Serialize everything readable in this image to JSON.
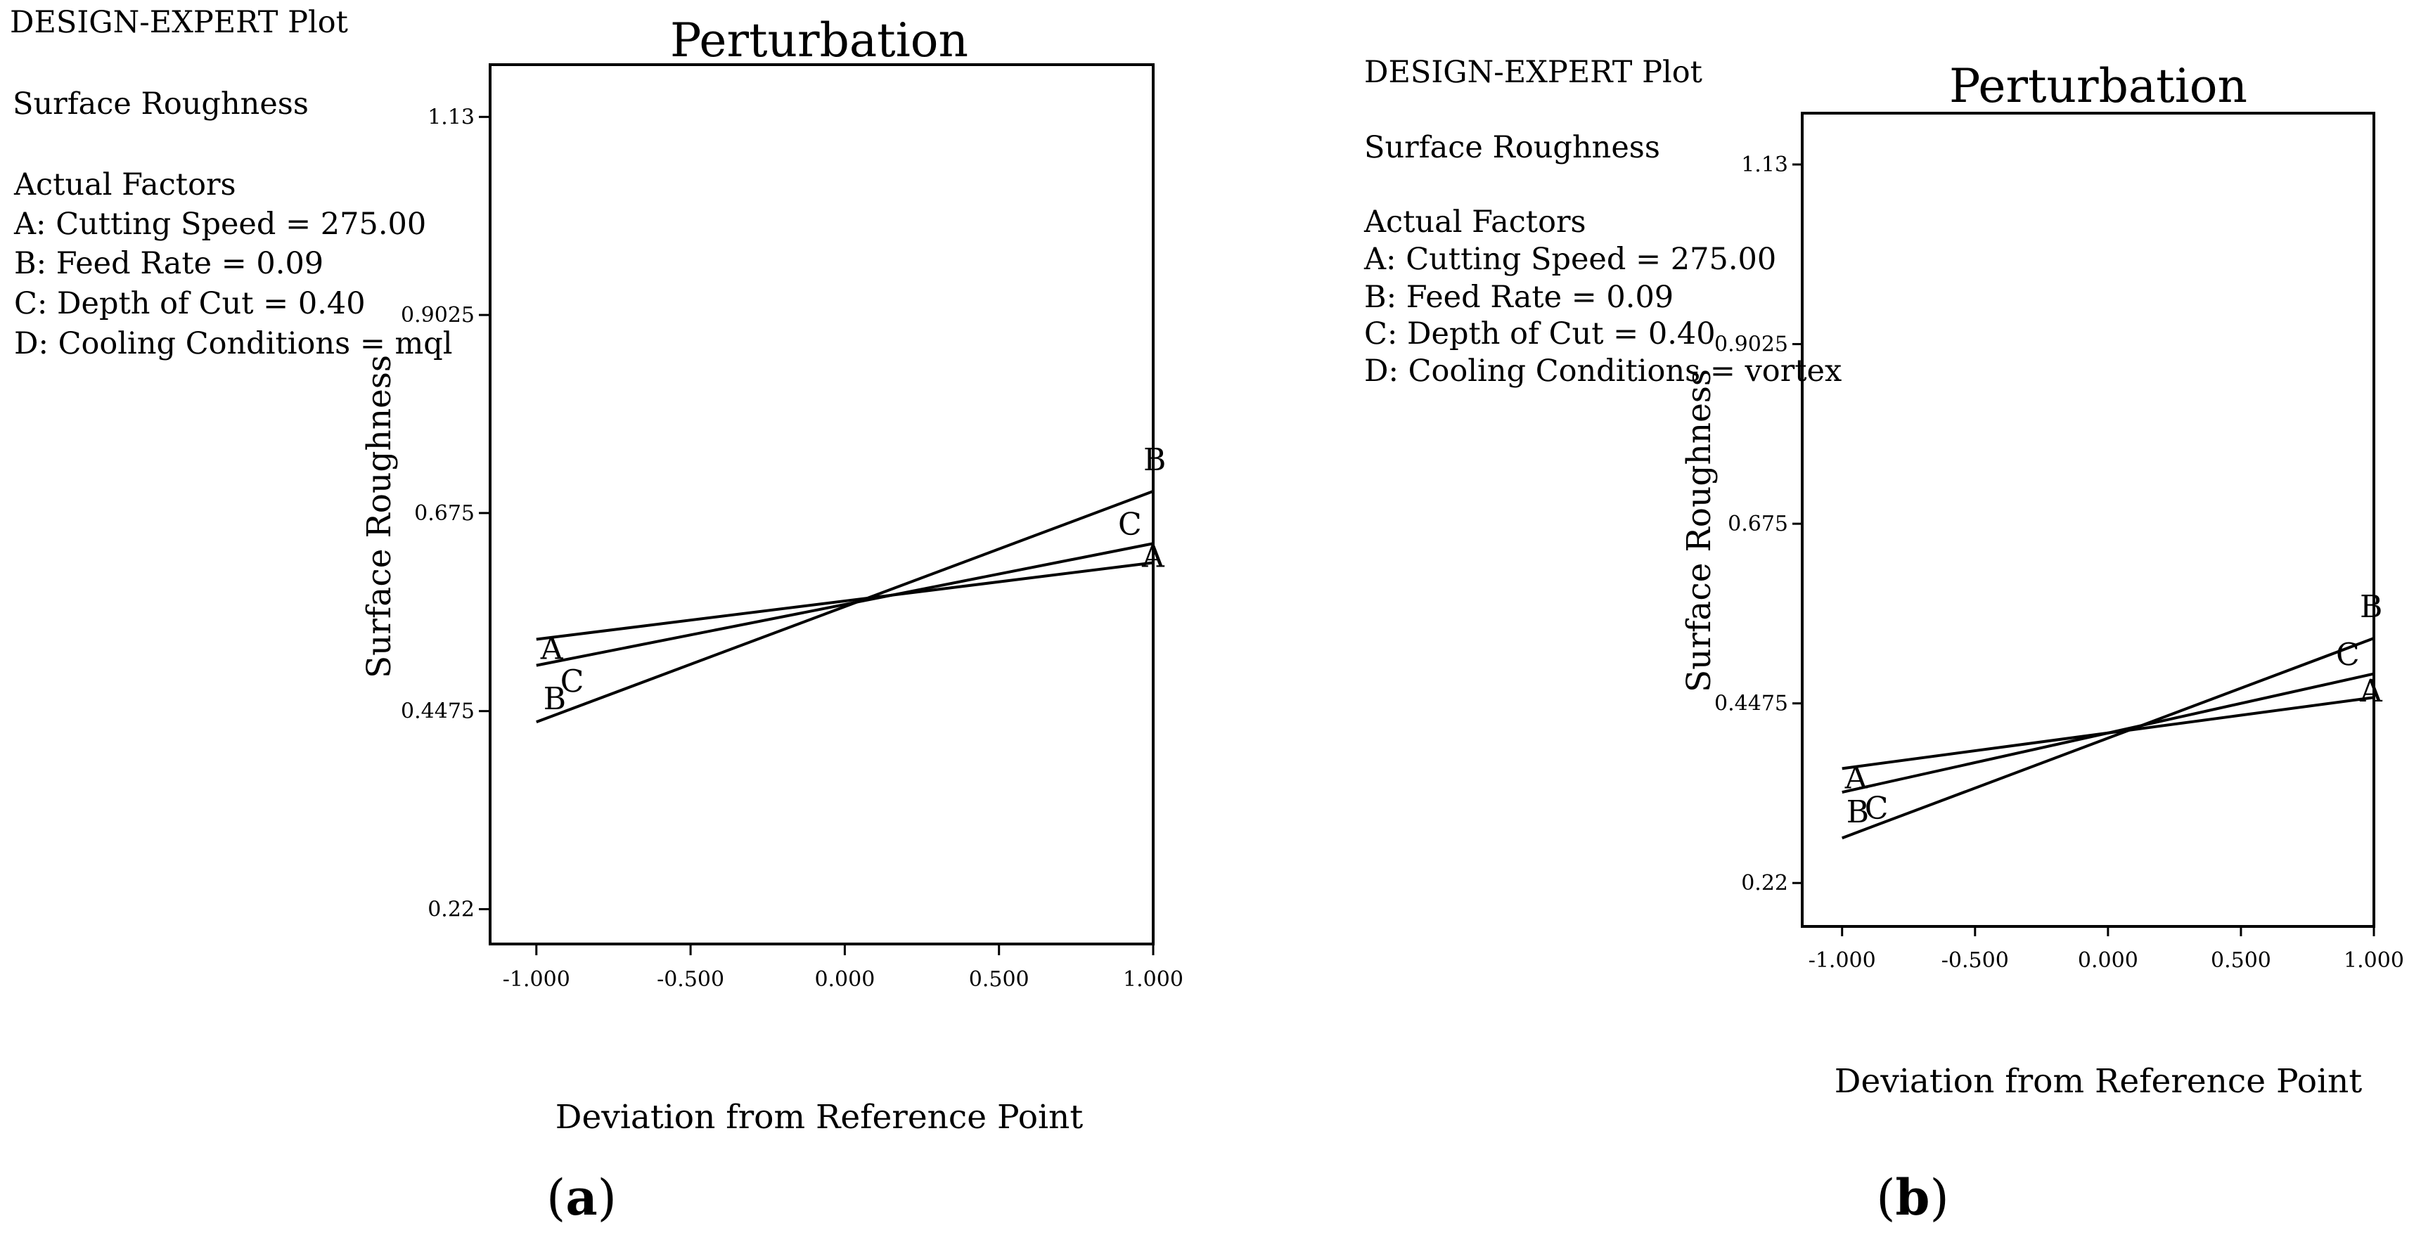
{
  "figure": {
    "panels": [
      {
        "id": "a",
        "info": {
          "program": "DESIGN-EXPERT Plot",
          "response": "Surface Roughness",
          "factors_header": "Actual Factors",
          "factors": [
            "A: Cutting Speed = 275.00",
            "B: Feed Rate = 0.09",
            "C: Depth of Cut = 0.40",
            "D: Cooling Conditions = mql"
          ]
        },
        "panel_label": {
          "open": "(",
          "letter": "a",
          "close": ")"
        }
      },
      {
        "id": "b",
        "info": {
          "program": "DESIGN-EXPERT Plot",
          "response": "Surface Roughness",
          "factors_header": "Actual Factors",
          "factors": [
            "A: Cutting Speed = 275.00",
            "B: Feed Rate = 0.09",
            "C: Depth of Cut = 0.40",
            "D: Cooling Conditions = vortex"
          ]
        },
        "panel_label": {
          "open": "(",
          "letter": "b",
          "close": ")"
        }
      }
    ]
  },
  "chart_data": [
    {
      "type": "line",
      "title": "Perturbation",
      "xlabel": "Deviation from Reference Point",
      "ylabel": "Surface Roughness",
      "xlim": [
        -1.15,
        1.0
      ],
      "ylim": [
        0.18,
        1.19
      ],
      "x_ticks": [
        -1.0,
        -0.5,
        0.0,
        0.5,
        1.0
      ],
      "x_tick_labels": [
        "-1.000",
        "-0.500",
        "0.000",
        "0.500",
        "1.000"
      ],
      "y_ticks": [
        0.22,
        0.4475,
        0.675,
        0.9025,
        1.13
      ],
      "y_tick_labels": [
        "0.22",
        "0.4475",
        "0.675",
        "0.9025",
        "1.13"
      ],
      "series": [
        {
          "name": "A",
          "x": [
            -1.0,
            1.0
          ],
          "y": [
            0.53,
            0.618
          ]
        },
        {
          "name": "B",
          "x": [
            -1.0,
            1.0
          ],
          "y": [
            0.435,
            0.7
          ]
        },
        {
          "name": "C",
          "x": [
            -1.0,
            1.0
          ],
          "y": [
            0.5,
            0.64
          ]
        }
      ]
    },
    {
      "type": "line",
      "title": "Perturbation",
      "xlabel": "Deviation from Reference Point",
      "ylabel": "Surface Roughness",
      "xlim": [
        -1.15,
        1.0
      ],
      "ylim": [
        0.165,
        1.195
      ],
      "x_ticks": [
        -1.0,
        -0.5,
        0.0,
        0.5,
        1.0
      ],
      "x_tick_labels": [
        "-1.000",
        "-0.500",
        "0.000",
        "0.500",
        "1.000"
      ],
      "y_ticks": [
        0.22,
        0.4475,
        0.675,
        0.9025,
        1.13
      ],
      "y_tick_labels": [
        "0.22",
        "0.4475",
        "0.675",
        "0.9025",
        "1.13"
      ],
      "series": [
        {
          "name": "A",
          "x": [
            -1.0,
            1.0
          ],
          "y": [
            0.365,
            0.455
          ]
        },
        {
          "name": "B",
          "x": [
            -1.0,
            1.0
          ],
          "y": [
            0.277,
            0.53
          ]
        },
        {
          "name": "C",
          "x": [
            -1.0,
            1.0
          ],
          "y": [
            0.335,
            0.485
          ]
        }
      ]
    }
  ]
}
